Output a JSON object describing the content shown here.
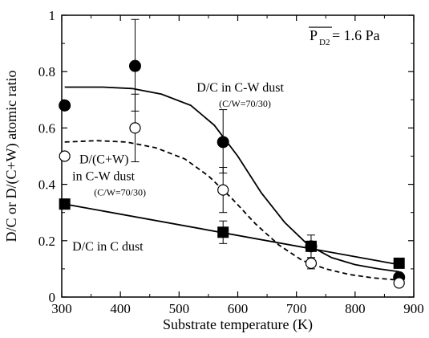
{
  "chart_data": {
    "type": "scatter",
    "xlabel": "Substrate temperature (K)",
    "ylabel": "D/C or D/(C+W) atomic ratio",
    "xlim": [
      300,
      900
    ],
    "ylim": [
      0,
      1
    ],
    "x_ticks": [
      300,
      400,
      500,
      600,
      700,
      800,
      900
    ],
    "y_ticks": [
      0,
      0.2,
      0.4,
      0.6,
      0.8,
      1
    ],
    "x_tick_labels": [
      "300",
      "400",
      "500",
      "600",
      "700",
      "800",
      "900"
    ],
    "y_tick_labels": [
      "0",
      "0.2",
      "0.4",
      "0.6",
      "0.8",
      "1"
    ],
    "grid": false,
    "pressure_label": {
      "main": "P",
      "subscript": "D2",
      "value": " = 1.6 Pa"
    },
    "series": [
      {
        "marker": "filled-circle",
        "points": [
          {
            "x": 305,
            "y": 0.68
          },
          {
            "x": 425,
            "y": 0.82,
            "err_low": 0.66,
            "err_high": 0.985
          },
          {
            "x": 575,
            "y": 0.55,
            "err_low": 0.44,
            "err_high": 0.665
          },
          {
            "x": 725,
            "y": 0.18,
            "err_low": 0.14,
            "err_high": 0.22
          },
          {
            "x": 875,
            "y": 0.07
          }
        ],
        "fit_line": {
          "style": "solid",
          "points": [
            [
              305,
              0.745
            ],
            [
              370,
              0.745
            ],
            [
              420,
              0.74
            ],
            [
              470,
              0.72
            ],
            [
              520,
              0.68
            ],
            [
              560,
              0.61
            ],
            [
              600,
              0.5
            ],
            [
              640,
              0.37
            ],
            [
              680,
              0.265
            ],
            [
              720,
              0.185
            ],
            [
              760,
              0.14
            ],
            [
              800,
              0.115
            ],
            [
              840,
              0.1
            ],
            [
              875,
              0.09
            ]
          ]
        }
      },
      {
        "marker": "open-circle",
        "points": [
          {
            "x": 305,
            "y": 0.5
          },
          {
            "x": 425,
            "y": 0.6,
            "err_low": 0.48,
            "err_high": 0.72
          },
          {
            "x": 575,
            "y": 0.38,
            "err_low": 0.3,
            "err_high": 0.46
          },
          {
            "x": 725,
            "y": 0.12,
            "err_low": 0.1,
            "err_high": 0.14
          },
          {
            "x": 875,
            "y": 0.05
          }
        ],
        "fit_line": {
          "style": "dashed",
          "points": [
            [
              305,
              0.55
            ],
            [
              360,
              0.555
            ],
            [
              410,
              0.55
            ],
            [
              460,
              0.53
            ],
            [
              510,
              0.49
            ],
            [
              550,
              0.43
            ],
            [
              590,
              0.35
            ],
            [
              630,
              0.26
            ],
            [
              670,
              0.185
            ],
            [
              710,
              0.13
            ],
            [
              750,
              0.1
            ],
            [
              790,
              0.08
            ],
            [
              830,
              0.068
            ],
            [
              875,
              0.06
            ]
          ]
        }
      },
      {
        "marker": "filled-square",
        "points": [
          {
            "x": 305,
            "y": 0.33
          },
          {
            "x": 575,
            "y": 0.23,
            "err_low": 0.19,
            "err_high": 0.27
          },
          {
            "x": 725,
            "y": 0.18
          },
          {
            "x": 875,
            "y": 0.12
          }
        ],
        "fit_line": {
          "style": "solid",
          "points": [
            [
              305,
              0.33
            ],
            [
              875,
              0.115
            ]
          ]
        }
      }
    ],
    "annotations": [
      {
        "text": "D/C in C-W dust",
        "x": 530,
        "y": 0.73,
        "size": "normal"
      },
      {
        "text": "(C/W=70/30)",
        "x": 568,
        "y": 0.675,
        "size": "small"
      },
      {
        "text": "D/(C+W)",
        "x": 330,
        "y": 0.475,
        "size": "normal"
      },
      {
        "text": "in C-W dust",
        "x": 318,
        "y": 0.415,
        "size": "normal"
      },
      {
        "text": "(C/W=70/30)",
        "x": 355,
        "y": 0.36,
        "size": "small"
      },
      {
        "text": "D/C in C dust",
        "x": 318,
        "y": 0.165,
        "size": "normal"
      }
    ]
  }
}
